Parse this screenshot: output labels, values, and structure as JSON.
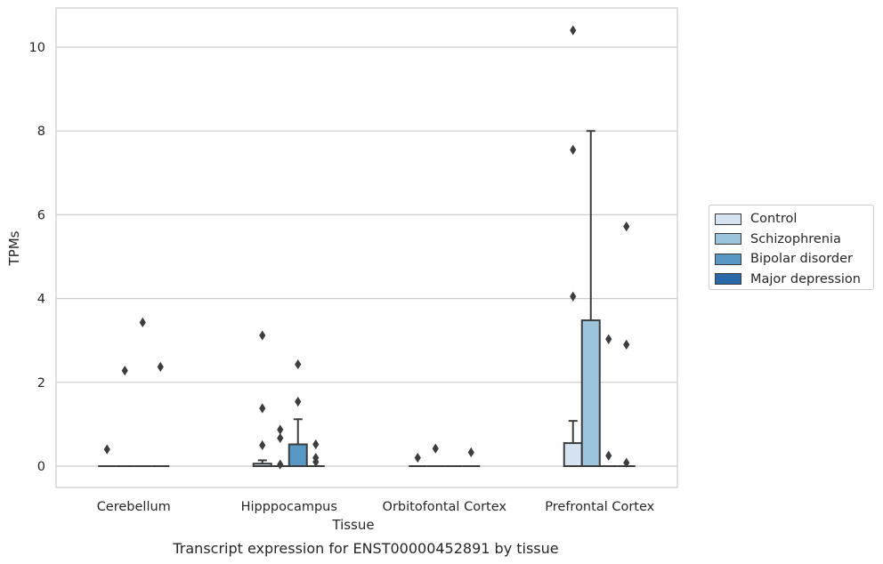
{
  "chart_data": {
    "type": "box",
    "xlabel": "Tissue",
    "ylabel": "TPMs",
    "caption": "Transcript expression for ENST00000452891 by tissue",
    "ylim": [
      -0.5,
      10.9
    ],
    "yticks": [
      0,
      2,
      4,
      6,
      8,
      10
    ],
    "grid": "horizontal",
    "legend_position": "right",
    "categories": [
      "Cerebellum",
      "Hipppocampus",
      "Orbitofontal Cortex",
      "Prefrontal Cortex"
    ],
    "series": [
      {
        "name": "Control",
        "color": "#d6e4f2",
        "boxes": [
          {
            "q1": 0,
            "median": 0,
            "q3": 0,
            "whisker_low": 0,
            "whisker_high": 0,
            "outliers": [
              0.4
            ]
          },
          {
            "q1": 0,
            "median": 0,
            "q3": 0.06,
            "whisker_low": 0,
            "whisker_high": 0.14,
            "outliers": [
              3.12,
              1.38,
              0.5
            ]
          },
          {
            "q1": 0,
            "median": 0,
            "q3": 0,
            "whisker_low": 0,
            "whisker_high": 0,
            "outliers": [
              0.2
            ]
          },
          {
            "q1": 0,
            "median": 0,
            "q3": 0.55,
            "whisker_low": 0,
            "whisker_high": 1.08,
            "outliers": [
              10.4,
              7.55,
              4.05
            ]
          }
        ]
      },
      {
        "name": "Schizophrenia",
        "color": "#9cc4dd",
        "boxes": [
          {
            "q1": 0,
            "median": 0,
            "q3": 0,
            "whisker_low": 0,
            "whisker_high": 0,
            "outliers": [
              2.28
            ]
          },
          {
            "q1": 0,
            "median": 0,
            "q3": 0,
            "whisker_low": 0,
            "whisker_high": 0,
            "outliers": [
              0.87,
              0.67,
              0.04
            ]
          },
          {
            "q1": 0,
            "median": 0,
            "q3": 0,
            "whisker_low": 0,
            "whisker_high": 0,
            "outliers": [
              0.42
            ]
          },
          {
            "q1": 0,
            "median": 0,
            "q3": 3.48,
            "whisker_low": 0,
            "whisker_high": 8.0,
            "outliers": []
          }
        ]
      },
      {
        "name": "Bipolar disorder",
        "color": "#5998c5",
        "boxes": [
          {
            "q1": 0,
            "median": 0,
            "q3": 0,
            "whisker_low": 0,
            "whisker_high": 0,
            "outliers": [
              3.43
            ]
          },
          {
            "q1": 0,
            "median": 0,
            "q3": 0.52,
            "whisker_low": 0,
            "whisker_high": 1.12,
            "outliers": [
              2.43,
              1.54
            ]
          },
          {
            "q1": 0,
            "median": 0,
            "q3": 0,
            "whisker_low": 0,
            "whisker_high": 0,
            "outliers": []
          },
          {
            "q1": 0,
            "median": 0,
            "q3": 0,
            "whisker_low": 0,
            "whisker_high": 0,
            "outliers": [
              3.03,
              0.25
            ]
          }
        ]
      },
      {
        "name": "Major depression",
        "color": "#2b6aa8",
        "boxes": [
          {
            "q1": 0,
            "median": 0,
            "q3": 0,
            "whisker_low": 0,
            "whisker_high": 0,
            "outliers": [
              2.37
            ]
          },
          {
            "q1": 0,
            "median": 0,
            "q3": 0,
            "whisker_low": 0,
            "whisker_high": 0,
            "outliers": [
              0.52,
              0.2,
              0.1
            ]
          },
          {
            "q1": 0,
            "median": 0,
            "q3": 0,
            "whisker_low": 0,
            "whisker_high": 0,
            "outliers": [
              0.33
            ]
          },
          {
            "q1": 0,
            "median": 0,
            "q3": 0,
            "whisker_low": 0,
            "whisker_high": 0,
            "outliers": [
              5.72,
              2.9,
              0.08
            ]
          }
        ]
      }
    ]
  }
}
